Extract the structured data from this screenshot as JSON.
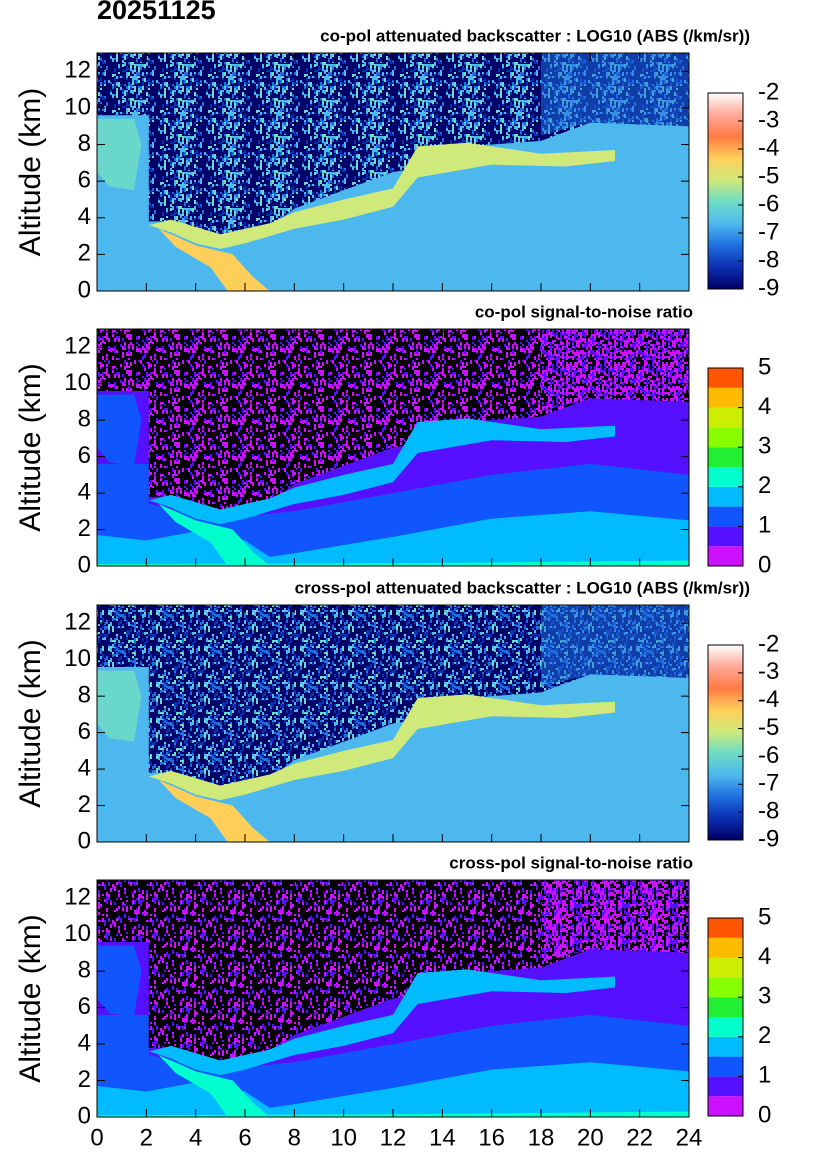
{
  "date": "20251125",
  "chart_data": [
    {
      "type": "heatmap",
      "title": "co-pol attenuated backscatter : LOG10 (ABS (/km/sr))",
      "y_label": "Altitude (km)",
      "xlim": [
        0,
        24
      ],
      "ylim": [
        0,
        13
      ],
      "yticks": [
        0,
        2,
        4,
        6,
        8,
        10,
        12
      ],
      "colorbar": {
        "lim": [
          -9,
          -2
        ],
        "ticks": [
          -9,
          -8,
          -7,
          -6,
          -5,
          -4,
          -3,
          -2
        ],
        "discrete": false,
        "colors": [
          "#000066",
          "#0b2fb0",
          "#1f6fe0",
          "#4db8ee",
          "#6ddcc6",
          "#cfe97a",
          "#ffcf5a",
          "#ff7a44",
          "#ffa898",
          "#ffffff"
        ]
      }
    },
    {
      "type": "heatmap",
      "title": "co-pol signal-to-noise ratio",
      "y_label": "Altitude (km)",
      "xlim": [
        0,
        24
      ],
      "ylim": [
        0,
        13
      ],
      "yticks": [
        0,
        2,
        4,
        6,
        8,
        10,
        12
      ],
      "colorbar": {
        "lim": [
          0,
          5
        ],
        "ticks": [
          0,
          1,
          2,
          3,
          4,
          5
        ],
        "discrete": true,
        "colors": [
          "#cc11ff",
          "#5511ff",
          "#1155ff",
          "#00bbff",
          "#00ffcc",
          "#22ee33",
          "#88ff00",
          "#ccee00",
          "#ffbb00",
          "#ff5500"
        ]
      }
    },
    {
      "type": "heatmap",
      "title": "cross-pol attenuated backscatter : LOG10 (ABS (/km/sr))",
      "y_label": "Altitude (km)",
      "xlim": [
        0,
        24
      ],
      "ylim": [
        0,
        13
      ],
      "yticks": [
        0,
        2,
        4,
        6,
        8,
        10,
        12
      ],
      "colorbar": {
        "lim": [
          -9,
          -2
        ],
        "ticks": [
          -9,
          -8,
          -7,
          -6,
          -5,
          -4,
          -3,
          -2
        ],
        "discrete": false,
        "colors": [
          "#000066",
          "#0b2fb0",
          "#1f6fe0",
          "#4db8ee",
          "#6ddcc6",
          "#cfe97a",
          "#ffcf5a",
          "#ff7a44",
          "#ffa898",
          "#ffffff"
        ]
      }
    },
    {
      "type": "heatmap",
      "title": "cross-pol signal-to-noise ratio",
      "y_label": "Altitude (km)",
      "xlim": [
        0,
        24
      ],
      "ylim": [
        0,
        13
      ],
      "yticks": [
        0,
        2,
        4,
        6,
        8,
        10,
        12
      ],
      "xticks": [
        0,
        2,
        4,
        6,
        8,
        10,
        12,
        14,
        16,
        18,
        20,
        22,
        24
      ],
      "colorbar": {
        "lim": [
          0,
          5
        ],
        "ticks": [
          0,
          1,
          2,
          3,
          4,
          5
        ],
        "discrete": true,
        "colors": [
          "#cc11ff",
          "#5511ff",
          "#1155ff",
          "#00bbff",
          "#00ffcc",
          "#22ee33",
          "#88ff00",
          "#ccee00",
          "#ffbb00",
          "#ff5500"
        ]
      }
    }
  ]
}
